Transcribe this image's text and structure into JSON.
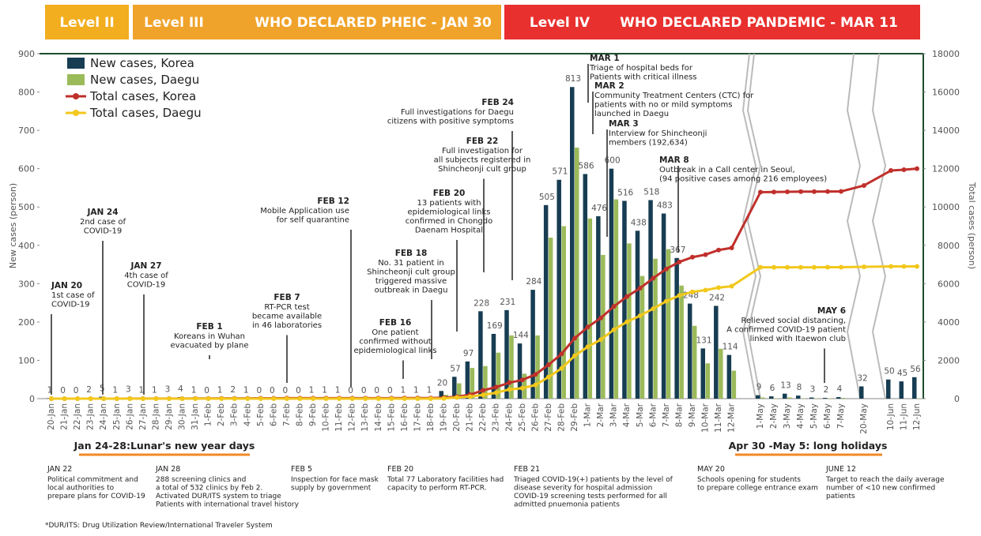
{
  "header": {
    "level2": "Level II",
    "level3": "Level III",
    "pheic": "WHO DECLARED PHEIC - JAN 30",
    "level4": "Level IV",
    "pandemic": "WHO DECLARED PANDEMIC - MAR 11"
  },
  "chart_data": {
    "type": "bar-line",
    "ylabel": "New cases (person)",
    "y2label": "Total cases (person)",
    "categories": [
      "20-Jan",
      "21-Jan",
      "22-Jan",
      "23-Jan",
      "24-Jan",
      "25-Jan",
      "26-Jan",
      "27-Jan",
      "28-Jan",
      "29-Jan",
      "30-Jan",
      "31-Jan",
      "1-Feb",
      "2-Feb",
      "3-Feb",
      "4-Feb",
      "5-Feb",
      "6-Feb",
      "7-Feb",
      "8-Feb",
      "9-Feb",
      "10-Feb",
      "11-Feb",
      "12-Feb",
      "13-Feb",
      "14-Feb",
      "15-Feb",
      "16-Feb",
      "17-Feb",
      "18-Feb",
      "19-Feb",
      "20-Feb",
      "21-Feb",
      "22-Feb",
      "23-Feb",
      "24-Feb",
      "25-Feb",
      "26-Feb",
      "27-Feb",
      "28-Feb",
      "29-Feb",
      "1-Mar",
      "2-Mar",
      "3-Mar",
      "4-Mar",
      "5-Mar",
      "6-Mar",
      "7-Mar",
      "8-Mar",
      "9-Mar",
      "10-Mar",
      "11-Mar",
      "12-Mar",
      "1-May",
      "2-May",
      "3-May",
      "4-May",
      "5-May",
      "6-May",
      "7-May",
      "20-May",
      "10-Jun",
      "11-Jun",
      "12-Jun"
    ],
    "series": [
      {
        "name": "New cases, Korea",
        "color": "#173d52",
        "kind": "bar",
        "values": [
          1,
          0,
          0,
          2,
          5,
          1,
          3,
          1,
          1,
          3,
          4,
          1,
          0,
          1,
          2,
          1,
          0,
          0,
          0,
          0,
          1,
          1,
          1,
          0,
          0,
          0,
          0,
          1,
          1,
          1,
          20,
          57,
          97,
          228,
          169,
          231,
          144,
          284,
          505,
          571,
          813,
          586,
          476,
          600,
          516,
          438,
          518,
          483,
          367,
          248,
          131,
          242,
          114,
          9,
          6,
          13,
          8,
          3,
          2,
          4,
          32,
          50,
          45,
          56
        ]
      },
      {
        "name": "New cases, Daegu",
        "color": "#9bba5a",
        "kind": "bar",
        "values": [
          0,
          0,
          0,
          0,
          0,
          0,
          0,
          0,
          0,
          0,
          0,
          0,
          0,
          0,
          0,
          0,
          0,
          0,
          0,
          0,
          0,
          0,
          0,
          0,
          0,
          0,
          0,
          0,
          0,
          1,
          10,
          40,
          80,
          85,
          120,
          165,
          65,
          165,
          420,
          450,
          655,
          470,
          375,
          520,
          405,
          320,
          365,
          390,
          295,
          190,
          92,
          130,
          73,
          3,
          1,
          3,
          1,
          1,
          1,
          2,
          0,
          0,
          0,
          1
        ]
      },
      {
        "name": "Total cases, Korea",
        "color": "#c0302b",
        "kind": "line",
        "axis": "y2",
        "values": [
          1,
          1,
          1,
          1,
          2,
          2,
          3,
          4,
          4,
          4,
          6,
          11,
          12,
          15,
          15,
          16,
          19,
          23,
          24,
          24,
          27,
          27,
          28,
          28,
          28,
          28,
          28,
          29,
          30,
          31,
          51,
          104,
          204,
          433,
          602,
          833,
          977,
          1261,
          1766,
          2337,
          3150,
          3736,
          4212,
          4812,
          5328,
          5766,
          6284,
          6767,
          7134,
          7382,
          7513,
          7755,
          7869,
          10774,
          10780,
          10793,
          10801,
          10804,
          10806,
          10810,
          11122,
          11902,
          11947,
          12003
        ]
      },
      {
        "name": "Total cases, Daegu",
        "color": "#f2c81c",
        "kind": "line",
        "axis": "y2",
        "values": [
          0,
          0,
          0,
          0,
          0,
          0,
          0,
          0,
          0,
          0,
          0,
          0,
          0,
          0,
          0,
          0,
          0,
          0,
          0,
          0,
          0,
          0,
          0,
          0,
          0,
          0,
          0,
          0,
          0,
          1,
          11,
          60,
          110,
          195,
          310,
          480,
          545,
          710,
          1130,
          1580,
          2236,
          2705,
          3081,
          3601,
          4006,
          4327,
          4693,
          5084,
          5381,
          5571,
          5663,
          5794,
          5867,
          6852,
          6852,
          6853,
          6855,
          6855,
          6856,
          6857,
          6880,
          6897,
          6899,
          6900
        ]
      }
    ],
    "ylim": [
      0,
      900
    ],
    "yticks": [
      0,
      100,
      200,
      300,
      400,
      500,
      600,
      700,
      800,
      900
    ],
    "y2lim": [
      0,
      18000
    ],
    "y2ticks": [
      0,
      2000,
      4000,
      6000,
      8000,
      10000,
      12000,
      14000,
      16000,
      18000
    ],
    "legend": "upper-left"
  },
  "annotations": [
    {
      "date": "JAN 20",
      "lines": [
        "1st case of",
        "COVID-19"
      ]
    },
    {
      "date": "JAN 24",
      "lines": [
        "2nd case of",
        "COVID-19"
      ]
    },
    {
      "date": "JAN 27",
      "lines": [
        "4th case of",
        "COVID-19"
      ]
    },
    {
      "date": "FEB 1",
      "lines": [
        "Koreans in Wuhan",
        "evacuated by plane"
      ]
    },
    {
      "date": "FEB 7",
      "lines": [
        "RT-PCR test",
        "became available",
        "in 46 laboratories"
      ]
    },
    {
      "date": "FEB 12",
      "lines": [
        "Mobile Application use",
        "for self quarantine"
      ]
    },
    {
      "date": "FEB 16",
      "lines": [
        "One patient",
        "confirmed without",
        "epidemiological links"
      ]
    },
    {
      "date": "FEB 18",
      "lines": [
        "No. 31 patient in",
        "Shincheonji cult group",
        "triggered massive",
        "outbreak in Daegu"
      ]
    },
    {
      "date": "FEB 20",
      "lines": [
        "13 patients with",
        "epidemiological links",
        "confirmed in Chongdo",
        "Daenam Hospital"
      ]
    },
    {
      "date": "FEB 22",
      "lines": [
        "Full investigation for",
        "all subjects registered in",
        "Shincheonji cult group"
      ]
    },
    {
      "date": "FEB 24",
      "lines": [
        "Full investigations for Daegu",
        "citizens with positive symptoms"
      ]
    },
    {
      "date": "MAR 1",
      "lines": [
        "Triage of hospital beds for",
        "Patients with critical illness"
      ]
    },
    {
      "date": "MAR 2",
      "lines": [
        "Community Treatment Centers (CTC) for",
        "patients with no or mild symptoms",
        "launched in Daegu"
      ]
    },
    {
      "date": "MAR 3",
      "lines": [
        "Interview for Shincheonji",
        "members (192,634)"
      ]
    },
    {
      "date": "MAR 8",
      "lines": [
        "Outbreak in a Call center in Seoul,",
        "(94 positive cases among 216 employees)"
      ]
    },
    {
      "date": "MAY 6",
      "lines": [
        "Relieved social distancing,",
        "A confirmed COVID-19 patient",
        "linked with Itaewon club"
      ]
    }
  ],
  "holidays": [
    "Jan 24-28:Lunar's new year days",
    "Apr 30 -May 5: long holidays"
  ],
  "notes": [
    {
      "date": "JAN 22",
      "lines": [
        "Political commitment and",
        "local authorities to",
        "prepare plans for COVID-19"
      ]
    },
    {
      "date": "JAN 28",
      "lines": [
        "288 screening clinics and",
        "a total of 532 clinics by Feb 2.",
        "Activated DUR/ITS system to triage",
        "Patients with international travel history"
      ]
    },
    {
      "date": "FEB 5",
      "lines": [
        "Inspection for face mask",
        "supply by government"
      ]
    },
    {
      "date": "FEB 20",
      "lines": [
        "Total 77 Laboratory facilities had",
        "capacity to perform RT-PCR."
      ]
    },
    {
      "date": "FEB 21",
      "lines": [
        "Triaged  COVID-19(+) patients by the level of",
        "disease severity for hospital admission",
        "COVID-19 screening tests performed for all",
        "admitted pnuemonia patients"
      ]
    },
    {
      "date": "MAY 20",
      "lines": [
        "Schools opening for students",
        "to prepare college entrance exam"
      ]
    },
    {
      "date": "JUNE 12",
      "lines": [
        "Target to reach the daily average",
        "number of <10 new confirmed",
        "patients"
      ]
    }
  ],
  "footnote": "*DUR/ITS: Drug Utilization Review/International Traveler System"
}
